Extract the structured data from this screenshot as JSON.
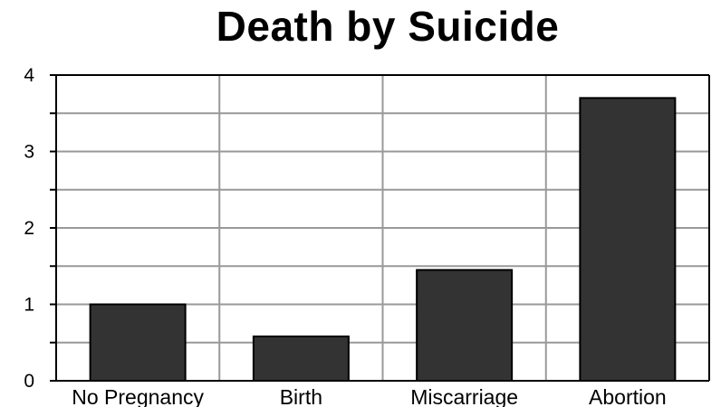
{
  "chart_data": {
    "type": "bar",
    "title": "Death by Suicide",
    "categories": [
      "No Pregnancy",
      "Birth",
      "Miscarriage",
      "Abortion"
    ],
    "values": [
      1.0,
      0.58,
      1.45,
      3.7
    ],
    "ylim": [
      0,
      4
    ],
    "yticks": [
      "0",
      "1",
      "2",
      "3",
      "4"
    ],
    "grid": true,
    "bar_color": "#333333",
    "grid_color": "#999999"
  }
}
